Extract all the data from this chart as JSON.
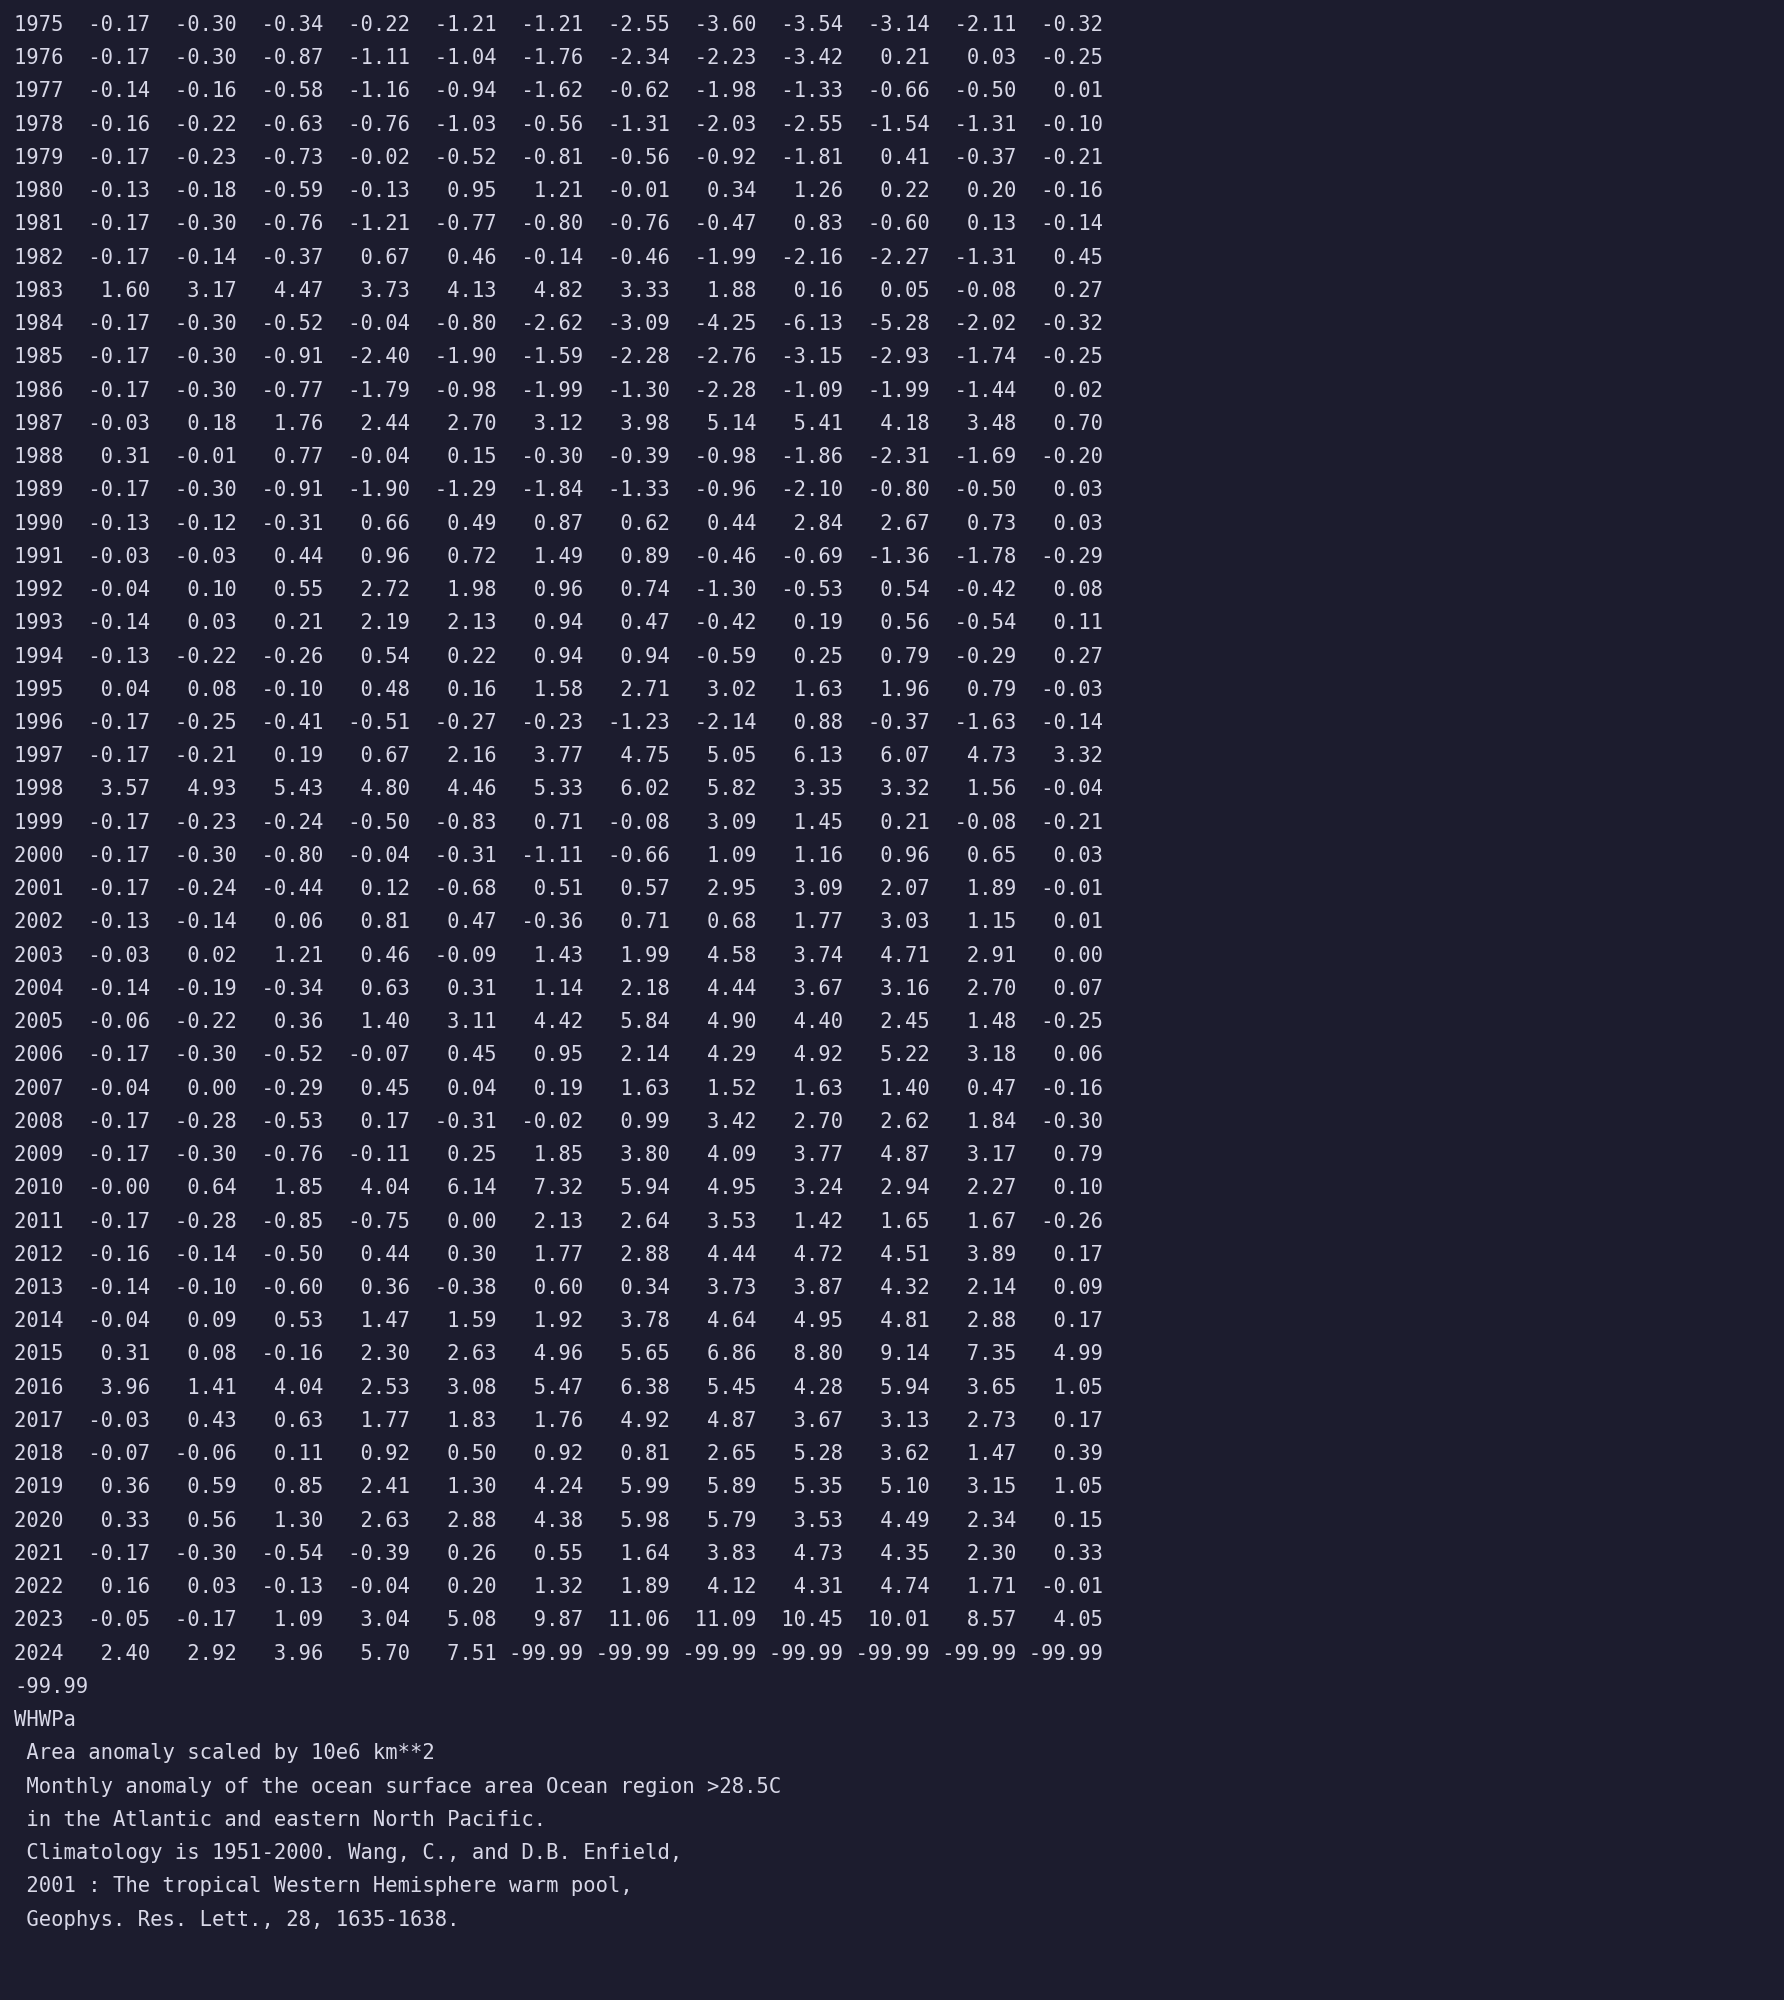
{
  "bg_color": "#1c1c2e",
  "text_color": "#d8d8e8",
  "font_size": 14.8,
  "footer_font_size": 14.8,
  "rows": [
    [
      1975,
      -0.17,
      -0.3,
      -0.34,
      -0.22,
      -1.21,
      -1.21,
      -2.55,
      -3.6,
      -3.54,
      -3.14,
      -2.11,
      -0.32
    ],
    [
      1976,
      -0.17,
      -0.3,
      -0.87,
      -1.11,
      -1.04,
      -1.76,
      -2.34,
      -2.23,
      -3.42,
      0.21,
      0.03,
      -0.25
    ],
    [
      1977,
      -0.14,
      -0.16,
      -0.58,
      -1.16,
      -0.94,
      -1.62,
      -0.62,
      -1.98,
      -1.33,
      -0.66,
      -0.5,
      0.01
    ],
    [
      1978,
      -0.16,
      -0.22,
      -0.63,
      -0.76,
      -1.03,
      -0.56,
      -1.31,
      -2.03,
      -2.55,
      -1.54,
      -1.31,
      -0.1
    ],
    [
      1979,
      -0.17,
      -0.23,
      -0.73,
      -0.02,
      -0.52,
      -0.81,
      -0.56,
      -0.92,
      -1.81,
      0.41,
      -0.37,
      -0.21
    ],
    [
      1980,
      -0.13,
      -0.18,
      -0.59,
      -0.13,
      0.95,
      1.21,
      -0.01,
      0.34,
      1.26,
      0.22,
      0.2,
      -0.16
    ],
    [
      1981,
      -0.17,
      -0.3,
      -0.76,
      -1.21,
      -0.77,
      -0.8,
      -0.76,
      -0.47,
      0.83,
      -0.6,
      0.13,
      -0.14
    ],
    [
      1982,
      -0.17,
      -0.14,
      -0.37,
      0.67,
      0.46,
      -0.14,
      -0.46,
      -1.99,
      -2.16,
      -2.27,
      -1.31,
      0.45
    ],
    [
      1983,
      1.6,
      3.17,
      4.47,
      3.73,
      4.13,
      4.82,
      3.33,
      1.88,
      0.16,
      0.05,
      -0.08,
      0.27
    ],
    [
      1984,
      -0.17,
      -0.3,
      -0.52,
      -0.04,
      -0.8,
      -2.62,
      -3.09,
      -4.25,
      -6.13,
      -5.28,
      -2.02,
      -0.32
    ],
    [
      1985,
      -0.17,
      -0.3,
      -0.91,
      -2.4,
      -1.9,
      -1.59,
      -2.28,
      -2.76,
      -3.15,
      -2.93,
      -1.74,
      -0.25
    ],
    [
      1986,
      -0.17,
      -0.3,
      -0.77,
      -1.79,
      -0.98,
      -1.99,
      -1.3,
      -2.28,
      -1.09,
      -1.99,
      -1.44,
      0.02
    ],
    [
      1987,
      -0.03,
      0.18,
      1.76,
      2.44,
      2.7,
      3.12,
      3.98,
      5.14,
      5.41,
      4.18,
      3.48,
      0.7
    ],
    [
      1988,
      0.31,
      -0.01,
      0.77,
      -0.04,
      0.15,
      -0.3,
      -0.39,
      -0.98,
      -1.86,
      -2.31,
      -1.69,
      -0.2
    ],
    [
      1989,
      -0.17,
      -0.3,
      -0.91,
      -1.9,
      -1.29,
      -1.84,
      -1.33,
      -0.96,
      -2.1,
      -0.8,
      -0.5,
      0.03
    ],
    [
      1990,
      -0.13,
      -0.12,
      -0.31,
      0.66,
      0.49,
      0.87,
      0.62,
      0.44,
      2.84,
      2.67,
      0.73,
      0.03
    ],
    [
      1991,
      -0.03,
      -0.03,
      0.44,
      0.96,
      0.72,
      1.49,
      0.89,
      -0.46,
      -0.69,
      -1.36,
      -1.78,
      -0.29
    ],
    [
      1992,
      -0.04,
      0.1,
      0.55,
      2.72,
      1.98,
      0.96,
      0.74,
      -1.3,
      -0.53,
      0.54,
      -0.42,
      0.08
    ],
    [
      1993,
      -0.14,
      0.03,
      0.21,
      2.19,
      2.13,
      0.94,
      0.47,
      -0.42,
      0.19,
      0.56,
      -0.54,
      0.11
    ],
    [
      1994,
      -0.13,
      -0.22,
      -0.26,
      0.54,
      0.22,
      0.94,
      0.94,
      -0.59,
      0.25,
      0.79,
      -0.29,
      0.27
    ],
    [
      1995,
      0.04,
      0.08,
      -0.1,
      0.48,
      0.16,
      1.58,
      2.71,
      3.02,
      1.63,
      1.96,
      0.79,
      -0.03
    ],
    [
      1996,
      -0.17,
      -0.25,
      -0.41,
      -0.51,
      -0.27,
      -0.23,
      -1.23,
      -2.14,
      0.88,
      -0.37,
      -1.63,
      -0.14
    ],
    [
      1997,
      -0.17,
      -0.21,
      0.19,
      0.67,
      2.16,
      3.77,
      4.75,
      5.05,
      6.13,
      6.07,
      4.73,
      3.32
    ],
    [
      1998,
      3.57,
      4.93,
      5.43,
      4.8,
      4.46,
      5.33,
      6.02,
      5.82,
      3.35,
      3.32,
      1.56,
      -0.04
    ],
    [
      1999,
      -0.17,
      -0.23,
      -0.24,
      -0.5,
      -0.83,
      0.71,
      -0.08,
      3.09,
      1.45,
      0.21,
      -0.08,
      -0.21
    ],
    [
      2000,
      -0.17,
      -0.3,
      -0.8,
      -0.04,
      -0.31,
      -1.11,
      -0.66,
      1.09,
      1.16,
      0.96,
      0.65,
      0.03
    ],
    [
      2001,
      -0.17,
      -0.24,
      -0.44,
      0.12,
      -0.68,
      0.51,
      0.57,
      2.95,
      3.09,
      2.07,
      1.89,
      -0.01
    ],
    [
      2002,
      -0.13,
      -0.14,
      0.06,
      0.81,
      0.47,
      -0.36,
      0.71,
      0.68,
      1.77,
      3.03,
      1.15,
      0.01
    ],
    [
      2003,
      -0.03,
      0.02,
      1.21,
      0.46,
      -0.09,
      1.43,
      1.99,
      4.58,
      3.74,
      4.71,
      2.91,
      0.0
    ],
    [
      2004,
      -0.14,
      -0.19,
      -0.34,
      0.63,
      0.31,
      1.14,
      2.18,
      4.44,
      3.67,
      3.16,
      2.7,
      0.07
    ],
    [
      2005,
      -0.06,
      -0.22,
      0.36,
      1.4,
      3.11,
      4.42,
      5.84,
      4.9,
      4.4,
      2.45,
      1.48,
      -0.25
    ],
    [
      2006,
      -0.17,
      -0.3,
      -0.52,
      -0.07,
      0.45,
      0.95,
      2.14,
      4.29,
      4.92,
      5.22,
      3.18,
      0.06
    ],
    [
      2007,
      -0.04,
      0.0,
      -0.29,
      0.45,
      0.04,
      0.19,
      1.63,
      1.52,
      1.63,
      1.4,
      0.47,
      -0.16
    ],
    [
      2008,
      -0.17,
      -0.28,
      -0.53,
      0.17,
      -0.31,
      -0.02,
      0.99,
      3.42,
      2.7,
      2.62,
      1.84,
      -0.3
    ],
    [
      2009,
      -0.17,
      -0.3,
      -0.76,
      -0.11,
      0.25,
      1.85,
      3.8,
      4.09,
      3.77,
      4.87,
      3.17,
      0.79
    ],
    [
      2010,
      -0.0,
      0.64,
      1.85,
      4.04,
      6.14,
      7.32,
      5.94,
      4.95,
      3.24,
      2.94,
      2.27,
      0.1
    ],
    [
      2011,
      -0.17,
      -0.28,
      -0.85,
      -0.75,
      0.0,
      2.13,
      2.64,
      3.53,
      1.42,
      1.65,
      1.67,
      -0.26
    ],
    [
      2012,
      -0.16,
      -0.14,
      -0.5,
      0.44,
      0.3,
      1.77,
      2.88,
      4.44,
      4.72,
      4.51,
      3.89,
      0.17
    ],
    [
      2013,
      -0.14,
      -0.1,
      -0.6,
      0.36,
      -0.38,
      0.6,
      0.34,
      3.73,
      3.87,
      4.32,
      2.14,
      0.09
    ],
    [
      2014,
      -0.04,
      0.09,
      0.53,
      1.47,
      1.59,
      1.92,
      3.78,
      4.64,
      4.95,
      4.81,
      2.88,
      0.17
    ],
    [
      2015,
      0.31,
      0.08,
      -0.16,
      2.3,
      2.63,
      4.96,
      5.65,
      6.86,
      8.8,
      9.14,
      7.35,
      4.99
    ],
    [
      2016,
      3.96,
      1.41,
      4.04,
      2.53,
      3.08,
      5.47,
      6.38,
      5.45,
      4.28,
      5.94,
      3.65,
      1.05
    ],
    [
      2017,
      -0.03,
      0.43,
      0.63,
      1.77,
      1.83,
      1.76,
      4.92,
      4.87,
      3.67,
      3.13,
      2.73,
      0.17
    ],
    [
      2018,
      -0.07,
      -0.06,
      0.11,
      0.92,
      0.5,
      0.92,
      0.81,
      2.65,
      5.28,
      3.62,
      1.47,
      0.39
    ],
    [
      2019,
      0.36,
      0.59,
      0.85,
      2.41,
      1.3,
      4.24,
      5.99,
      5.89,
      5.35,
      5.1,
      3.15,
      1.05
    ],
    [
      2020,
      0.33,
      0.56,
      1.3,
      2.63,
      2.88,
      4.38,
      5.98,
      5.79,
      3.53,
      4.49,
      2.34,
      0.15
    ],
    [
      2021,
      -0.17,
      -0.3,
      -0.54,
      -0.39,
      0.26,
      0.55,
      1.64,
      3.83,
      4.73,
      4.35,
      2.3,
      0.33
    ],
    [
      2022,
      0.16,
      0.03,
      -0.13,
      -0.04,
      0.2,
      1.32,
      1.89,
      4.12,
      4.31,
      4.74,
      1.71,
      -0.01
    ],
    [
      2023,
      -0.05,
      -0.17,
      1.09,
      3.04,
      5.08,
      9.87,
      11.06,
      11.09,
      10.45,
      10.01,
      8.57,
      4.05
    ],
    [
      2024,
      2.4,
      2.92,
      3.96,
      5.7,
      7.51,
      -99.99,
      -99.99,
      -99.99,
      -99.99,
      -99.99,
      -99.99,
      -99.99
    ]
  ],
  "footer_lines": [
    "-99.99",
    "WHWPa",
    " Area anomaly scaled by 10e6 km**2",
    " Monthly anomaly of the ocean surface area Ocean region >28.5C",
    " in the Atlantic and eastern North Pacific.",
    " Climatology is 1951-2000. Wang, C., and D.B. Enfield,",
    " 2001 : The tropical Western Hemisphere warm pool,",
    " Geophys. Res. Lett., 28, 1635-1638."
  ]
}
